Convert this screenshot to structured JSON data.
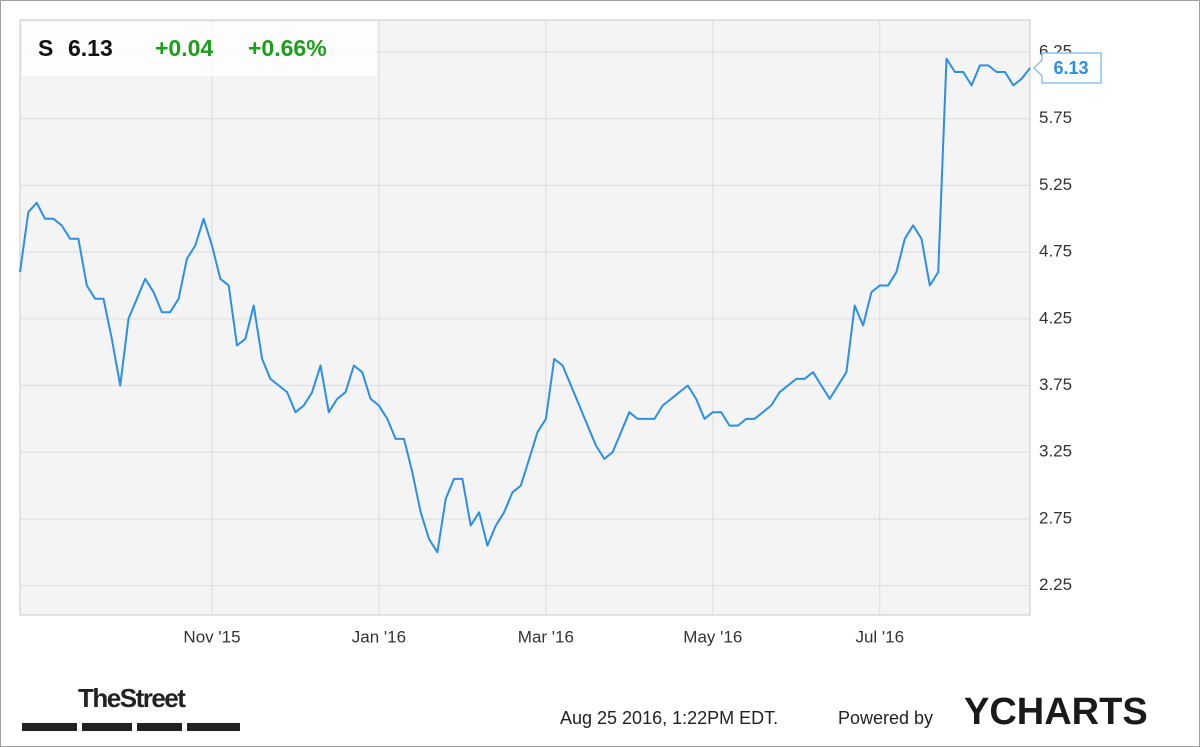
{
  "chart_data": {
    "type": "line",
    "symbol": "S",
    "last_price": "6.13",
    "change": "+0.04",
    "change_percent": "+0.66%",
    "color": "#2b8fe6",
    "grid": true,
    "ylim": [
      2.03,
      6.49
    ],
    "yticks": [
      2.25,
      2.75,
      3.25,
      3.75,
      4.25,
      4.75,
      5.25,
      5.75,
      6.25
    ],
    "categories": [
      null,
      null,
      null,
      null,
      null,
      null,
      null,
      null,
      null,
      null,
      null,
      null,
      null,
      null,
      null,
      null,
      null,
      null,
      null,
      null,
      null,
      null,
      null,
      "Nov '15",
      null,
      null,
      null,
      null,
      null,
      null,
      null,
      null,
      null,
      null,
      null,
      null,
      null,
      null,
      null,
      null,
      null,
      null,
      null,
      "Jan '16",
      null,
      null,
      null,
      null,
      null,
      null,
      null,
      null,
      null,
      null,
      null,
      null,
      null,
      null,
      null,
      null,
      null,
      null,
      null,
      "Mar '16",
      null,
      null,
      null,
      null,
      null,
      null,
      null,
      null,
      null,
      null,
      null,
      null,
      null,
      null,
      null,
      null,
      null,
      null,
      null,
      "May '16",
      null,
      null,
      null,
      null,
      null,
      null,
      null,
      null,
      null,
      null,
      null,
      null,
      null,
      null,
      null,
      null,
      null,
      null,
      null,
      "Jul '16",
      null,
      null,
      null,
      null,
      null,
      null,
      null,
      null,
      null,
      null,
      null,
      null,
      null,
      null,
      null,
      null,
      null,
      null
    ],
    "values": [
      4.6,
      5.05,
      5.12,
      5.0,
      5.0,
      4.95,
      4.85,
      4.85,
      4.5,
      4.4,
      4.4,
      4.1,
      3.75,
      4.25,
      4.4,
      4.55,
      4.45,
      4.3,
      4.3,
      4.4,
      4.7,
      4.8,
      5.0,
      4.8,
      4.55,
      4.5,
      4.05,
      4.1,
      4.35,
      3.95,
      3.8,
      3.75,
      3.7,
      3.55,
      3.6,
      3.7,
      3.9,
      3.55,
      3.65,
      3.7,
      3.9,
      3.85,
      3.65,
      3.6,
      3.5,
      3.35,
      3.35,
      3.1,
      2.8,
      2.6,
      2.5,
      2.9,
      3.05,
      3.05,
      2.7,
      2.8,
      2.55,
      2.7,
      2.8,
      2.95,
      3.0,
      3.2,
      3.4,
      3.5,
      3.95,
      3.9,
      3.75,
      3.6,
      3.45,
      3.3,
      3.2,
      3.25,
      3.4,
      3.55,
      3.5,
      3.5,
      3.5,
      3.6,
      3.65,
      3.7,
      3.75,
      3.65,
      3.5,
      3.55,
      3.55,
      3.45,
      3.45,
      3.5,
      3.5,
      3.55,
      3.6,
      3.7,
      3.75,
      3.8,
      3.8,
      3.85,
      3.75,
      3.65,
      3.75,
      3.85,
      4.35,
      4.2,
      4.45,
      4.5,
      4.5,
      4.6,
      4.85,
      4.95,
      4.85,
      4.5,
      4.6,
      6.2,
      6.1,
      6.1,
      6.0,
      6.15,
      6.15,
      6.1,
      6.1,
      6.0,
      6.05,
      6.13
    ],
    "source_logo": "TheStreet",
    "timestamp": "Aug 25 2016, 1:22PM EDT.",
    "powered_by": "Powered by",
    "brand": "YCHARTS"
  }
}
